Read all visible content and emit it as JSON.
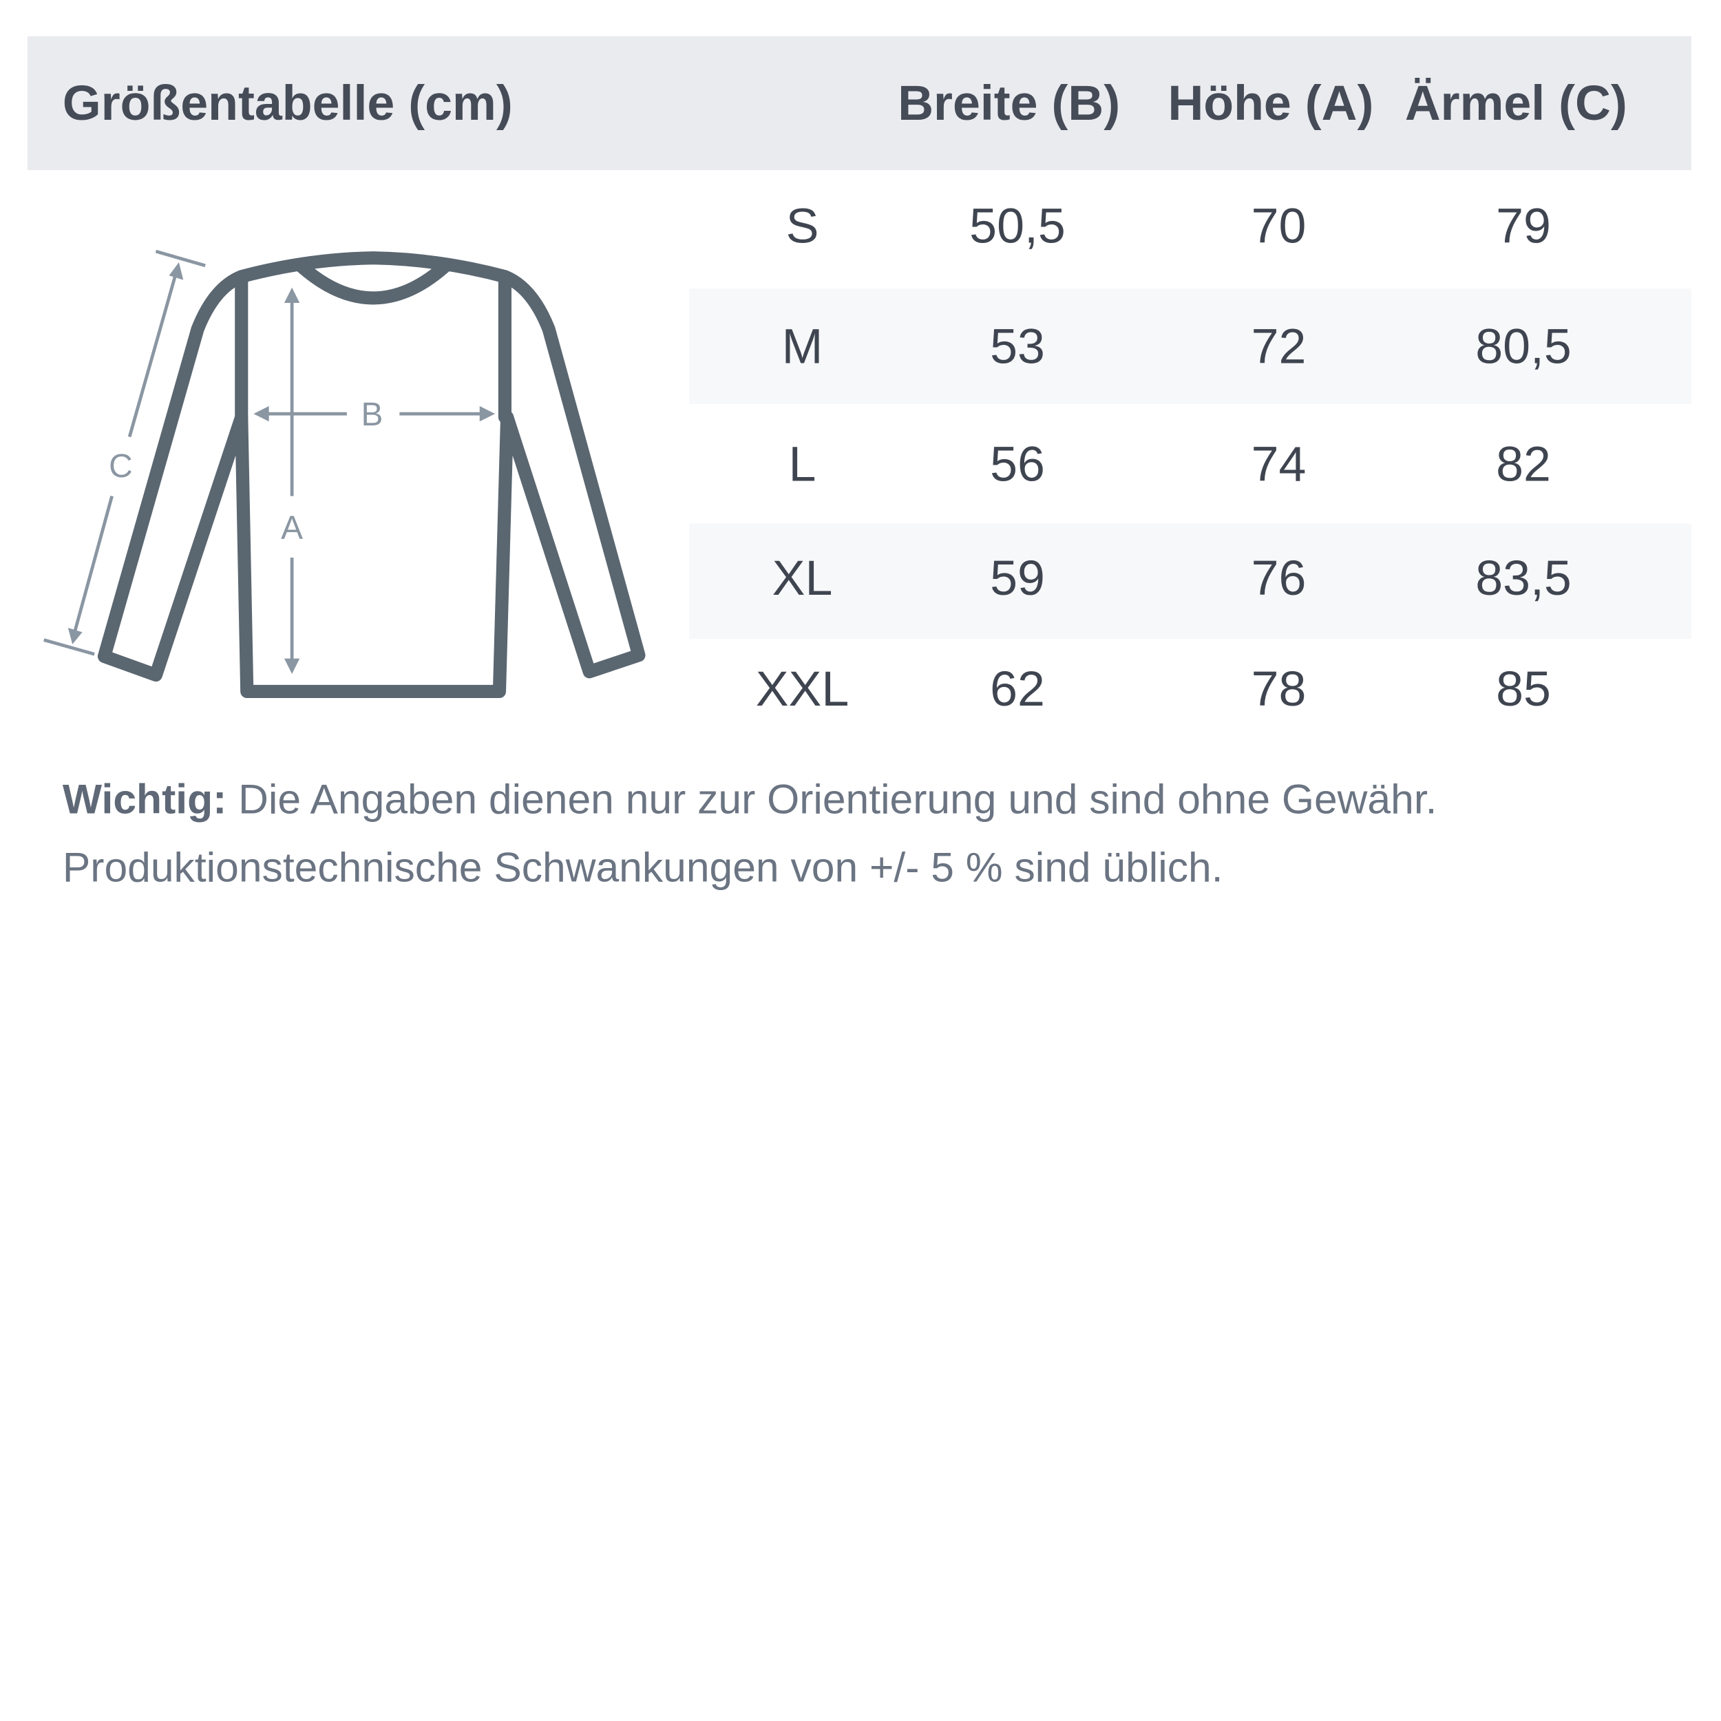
{
  "header": {
    "title": "Größentabelle (cm)",
    "columns": [
      "Breite (B)",
      "Höhe (A)",
      "Ärmel (C)"
    ]
  },
  "diagram": {
    "labels": {
      "a": "A",
      "b": "B",
      "c": "C"
    }
  },
  "rows": [
    {
      "size": "S",
      "breite": "50,5",
      "hoehe": "70",
      "aermel": "79"
    },
    {
      "size": "M",
      "breite": "53",
      "hoehe": "72",
      "aermel": "80,5"
    },
    {
      "size": "L",
      "breite": "56",
      "hoehe": "74",
      "aermel": "82"
    },
    {
      "size": "XL",
      "breite": "59",
      "hoehe": "76",
      "aermel": "83,5"
    },
    {
      "size": "XXL",
      "breite": "62",
      "hoehe": "78",
      "aermel": "85"
    }
  ],
  "note": {
    "label": "Wichtig:",
    "line1": "Die Angaben dienen nur zur Orientierung und sind ohne Gewähr.",
    "line2": "Produktionstechnische Schwankungen von +/- 5 % sind üblich."
  },
  "colors": {
    "header_bg": "#e9ebef",
    "outline": "#5a6670",
    "arrows": "#8a96a2"
  }
}
